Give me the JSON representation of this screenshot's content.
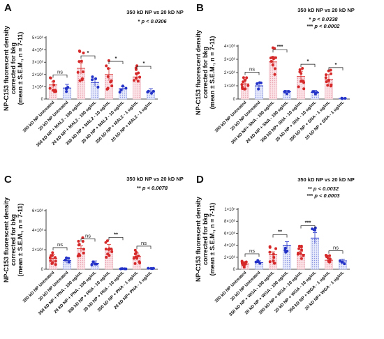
{
  "colors": {
    "red": "#d62a2a",
    "blue": "#2433c8",
    "red_fill": "#f5c6cf",
    "blue_fill": "#cdd3f5"
  },
  "chart_data": [
    {
      "panel": "A",
      "type": "bar",
      "ylabel": [
        "NP-C153 fluorescent density",
        "corrected for bkg",
        "(mean ± S.E.M., n = 7-11)"
      ],
      "yticks": [
        0,
        1000000,
        2000000,
        3000000,
        4000000,
        5000000
      ],
      "ytick_labels": [
        "0",
        "1×10⁶",
        "2×10⁶",
        "3×10⁶",
        "4×10⁶",
        "5×10⁶"
      ],
      "ylim": [
        0,
        5000000
      ],
      "categories": [
        "350 kD NP Untreated",
        "20 kD NP Untreated",
        "350 kD NP + MAL2 - 100 ug/mL",
        "20 kD NP + MAL2 - 100 ug/mL",
        "350 kD NP + MAL2 - 10 ug/mL",
        "20 kD NP + MAL2 - 10 ug/mL",
        "350 kD NP + MAL2 - 1 ug/mL",
        "20 kD NP + MAL2 - 1 ug/mL"
      ],
      "values": [
        1150000,
        900000,
        2500000,
        1350000,
        2000000,
        850000,
        1800000,
        650000
      ],
      "errors": [
        250000,
        300000,
        450000,
        300000,
        500000,
        150000,
        300000,
        200000
      ],
      "comparisons": [
        "ns",
        "*",
        "*",
        "*"
      ],
      "annotation": {
        "title": "350 kD NP vs 20 kD NP",
        "lines": [
          {
            "stars": "*",
            "text": "p < 0.0306"
          }
        ]
      }
    },
    {
      "panel": "B",
      "type": "bar",
      "ylabel": [
        "NP-C153 fluorescent density",
        "corrected for bkg",
        "(mean ± S.E.M., n = 7-11)"
      ],
      "yticks": [
        0,
        1000000,
        2000000,
        3000000,
        4000000
      ],
      "ytick_labels": [
        "0",
        "1×10⁶",
        "2×10⁶",
        "3×10⁶",
        "4×10⁶"
      ],
      "ylim": [
        0,
        4000000
      ],
      "categories": [
        "350 kD NP Untreated",
        "20 kD NP Untreated",
        "350 kD NP+ SNA - 100 ug/mL",
        "20 kD NP + SNA - 100 ug/mL",
        "350 kD NP+ SNA - 10 ug/mL",
        "20 kD NP + SNA - 10 ug/mL",
        "350 kD NP + SNA - 1 ug/mL",
        "20 kD NP + SNA - 1 ug/mL"
      ],
      "values": [
        1150000,
        1000000,
        2800000,
        550000,
        1700000,
        500000,
        1500000,
        50000
      ],
      "errors": [
        350000,
        250000,
        400000,
        100000,
        400000,
        150000,
        350000,
        40000
      ],
      "comparisons": [
        "ns",
        "***",
        "*",
        "*"
      ],
      "annotation": {
        "title": "350 kD NP vs 20 kD NP",
        "lines": [
          {
            "stars": "*",
            "text": "p < 0.0338"
          },
          {
            "stars": "***",
            "text": "p < 0.0002"
          }
        ]
      }
    },
    {
      "panel": "C",
      "type": "bar",
      "ylabel": [
        "NP-C153 fluorescent density",
        "corrected for bkg",
        "(mean ± S.E.M., n = 7-11)"
      ],
      "yticks": [
        0,
        2000000,
        4000000,
        6000000
      ],
      "ytick_labels": [
        "0",
        "2×10⁶",
        "4×10⁶",
        "6×10⁶"
      ],
      "ylim": [
        0,
        6000000
      ],
      "categories": [
        "350 kD NP Untreated",
        "20 kD NP Untreated",
        "350 kD NP + PNA - 100 ug/mL",
        "20 kD NP + PNA - 100 ug/mL",
        "350 kD NP + PNA - 10 ug/mL",
        "20 kD NP + PNA - 10 ug/mL",
        "350 kD NP + PNA - 1 ug/mL",
        "20 kD NP+ PNA - 1 ug/mL"
      ],
      "values": [
        1100000,
        900000,
        2100000,
        600000,
        2000000,
        50000,
        1300000,
        80000
      ],
      "errors": [
        400000,
        300000,
        300000,
        250000,
        550000,
        40000,
        350000,
        40000
      ],
      "comparisons": [
        "ns",
        "ns",
        "**",
        "ns"
      ],
      "annotation": {
        "title": "350 kD NP vs 20 kD NP",
        "lines": [
          {
            "stars": "**",
            "text": "p < 0.0078"
          }
        ]
      }
    },
    {
      "panel": "D",
      "type": "bar",
      "ylabel": [
        "NP-C153 fluorescent density",
        "corrected for bkg",
        "(mean ± S.E.M., n = 7-11)"
      ],
      "yticks": [
        0,
        2000000,
        4000000,
        6000000,
        8000000,
        10000000
      ],
      "ytick_labels": [
        "0",
        "2×10⁶",
        "4×10⁶",
        "6×10⁶",
        "8×10⁶",
        "1×10⁷"
      ],
      "ylim": [
        0,
        10000000
      ],
      "categories": [
        "350 kD NP Untreated",
        "20 kD NP Untreated",
        "350 kD NP + WGA - 100 ug/mL",
        "20 kD NP + WGA - 100 ug/mL",
        "350 kD NP + WGA - 10 ug/mL",
        "20 kD NP + WGA - 10 ug/mL",
        "350 kD NP + WGA - 1 ug/mL",
        "20 kD NP+ WGA - 1 ug/mL"
      ],
      "values": [
        900000,
        1100000,
        2500000,
        4000000,
        2500000,
        5200000,
        1500000,
        1400000
      ],
      "errors": [
        300000,
        300000,
        400000,
        600000,
        500000,
        900000,
        400000,
        300000
      ],
      "comparisons": [
        "ns",
        "**",
        "***",
        "ns"
      ],
      "annotation": {
        "title": "350 kD NP vs 20 kD NP",
        "lines": [
          {
            "stars": "**",
            "text": "p < 0.0032"
          },
          {
            "stars": "***",
            "text": "p < 0.0003"
          }
        ]
      }
    }
  ]
}
